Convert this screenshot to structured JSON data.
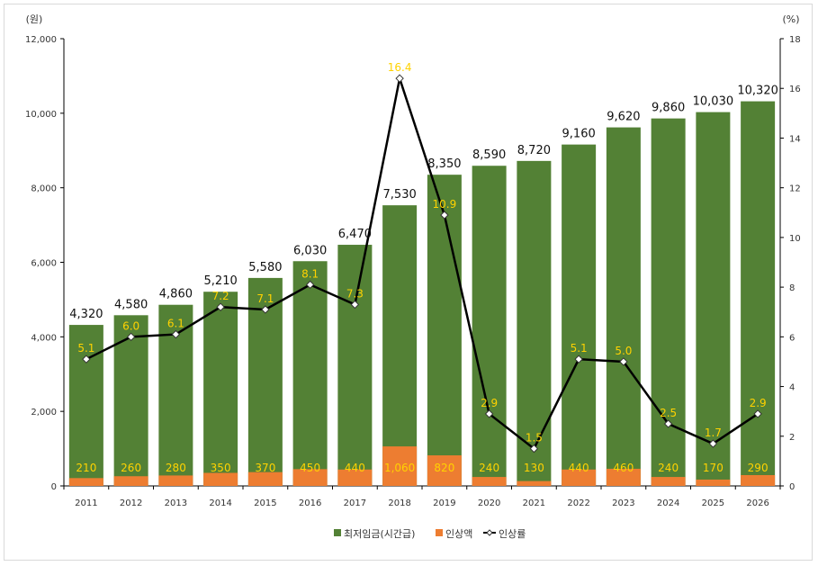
{
  "chart_data": {
    "type": "bar",
    "categories": [
      "2011",
      "2012",
      "2013",
      "2014",
      "2015",
      "2016",
      "2017",
      "2018",
      "2019",
      "2020",
      "2021",
      "2022",
      "2023",
      "2024",
      "2025",
      "2026"
    ],
    "series": [
      {
        "name": "최저임금(시간급)",
        "kind": "bar",
        "axis": "left",
        "color": "#538135",
        "values": [
          4320,
          4580,
          4860,
          5210,
          5580,
          6030,
          6470,
          7530,
          8350,
          8590,
          8720,
          9160,
          9620,
          9860,
          10030,
          10320
        ],
        "labels": [
          "4,320",
          "4,580",
          "4,860",
          "5,210",
          "5,580",
          "6,030",
          "6,470",
          "7,530",
          "8,350",
          "8,590",
          "8,720",
          "9,160",
          "9,620",
          "9,860",
          "10,030",
          "10,320"
        ]
      },
      {
        "name": "인상액",
        "kind": "bar",
        "axis": "left",
        "color": "#ed7d31",
        "values": [
          210,
          260,
          280,
          350,
          370,
          450,
          440,
          1060,
          820,
          240,
          130,
          440,
          460,
          240,
          170,
          290
        ],
        "labels": [
          "210",
          "260",
          "280",
          "350",
          "370",
          "450",
          "440",
          "1,060",
          "820",
          "240",
          "130",
          "440",
          "460",
          "240",
          "170",
          "290"
        ]
      },
      {
        "name": "인상률",
        "kind": "line",
        "axis": "right",
        "color": "#000000",
        "values": [
          5.1,
          6.0,
          6.1,
          7.2,
          7.1,
          8.1,
          7.3,
          16.4,
          10.9,
          2.9,
          1.5,
          5.1,
          5.0,
          2.5,
          1.7,
          2.9
        ],
        "labels": [
          "5.1",
          "6.0",
          "6.1",
          "7.2",
          "7.1",
          "8.1",
          "7.3",
          "16.4",
          "10.9",
          "2.9",
          "1.5",
          "5.1",
          "5.0",
          "2.5",
          "1.7",
          "2.9"
        ]
      }
    ],
    "y_left": {
      "unit": "(원)",
      "min": 0,
      "max": 12000,
      "ticks": [
        "0",
        "2,000",
        "4,000",
        "6,000",
        "8,000",
        "10,000",
        "12,000"
      ],
      "tick_values": [
        0,
        2000,
        4000,
        6000,
        8000,
        10000,
        12000
      ]
    },
    "y_right": {
      "unit": "(%)",
      "min": 0,
      "max": 18,
      "ticks": [
        "0",
        "2",
        "4",
        "6",
        "8",
        "10",
        "12",
        "14",
        "16",
        "18"
      ],
      "tick_values": [
        0,
        2,
        4,
        6,
        8,
        10,
        12,
        14,
        16,
        18
      ]
    },
    "legend_position": "bottom-center",
    "grid": false
  }
}
